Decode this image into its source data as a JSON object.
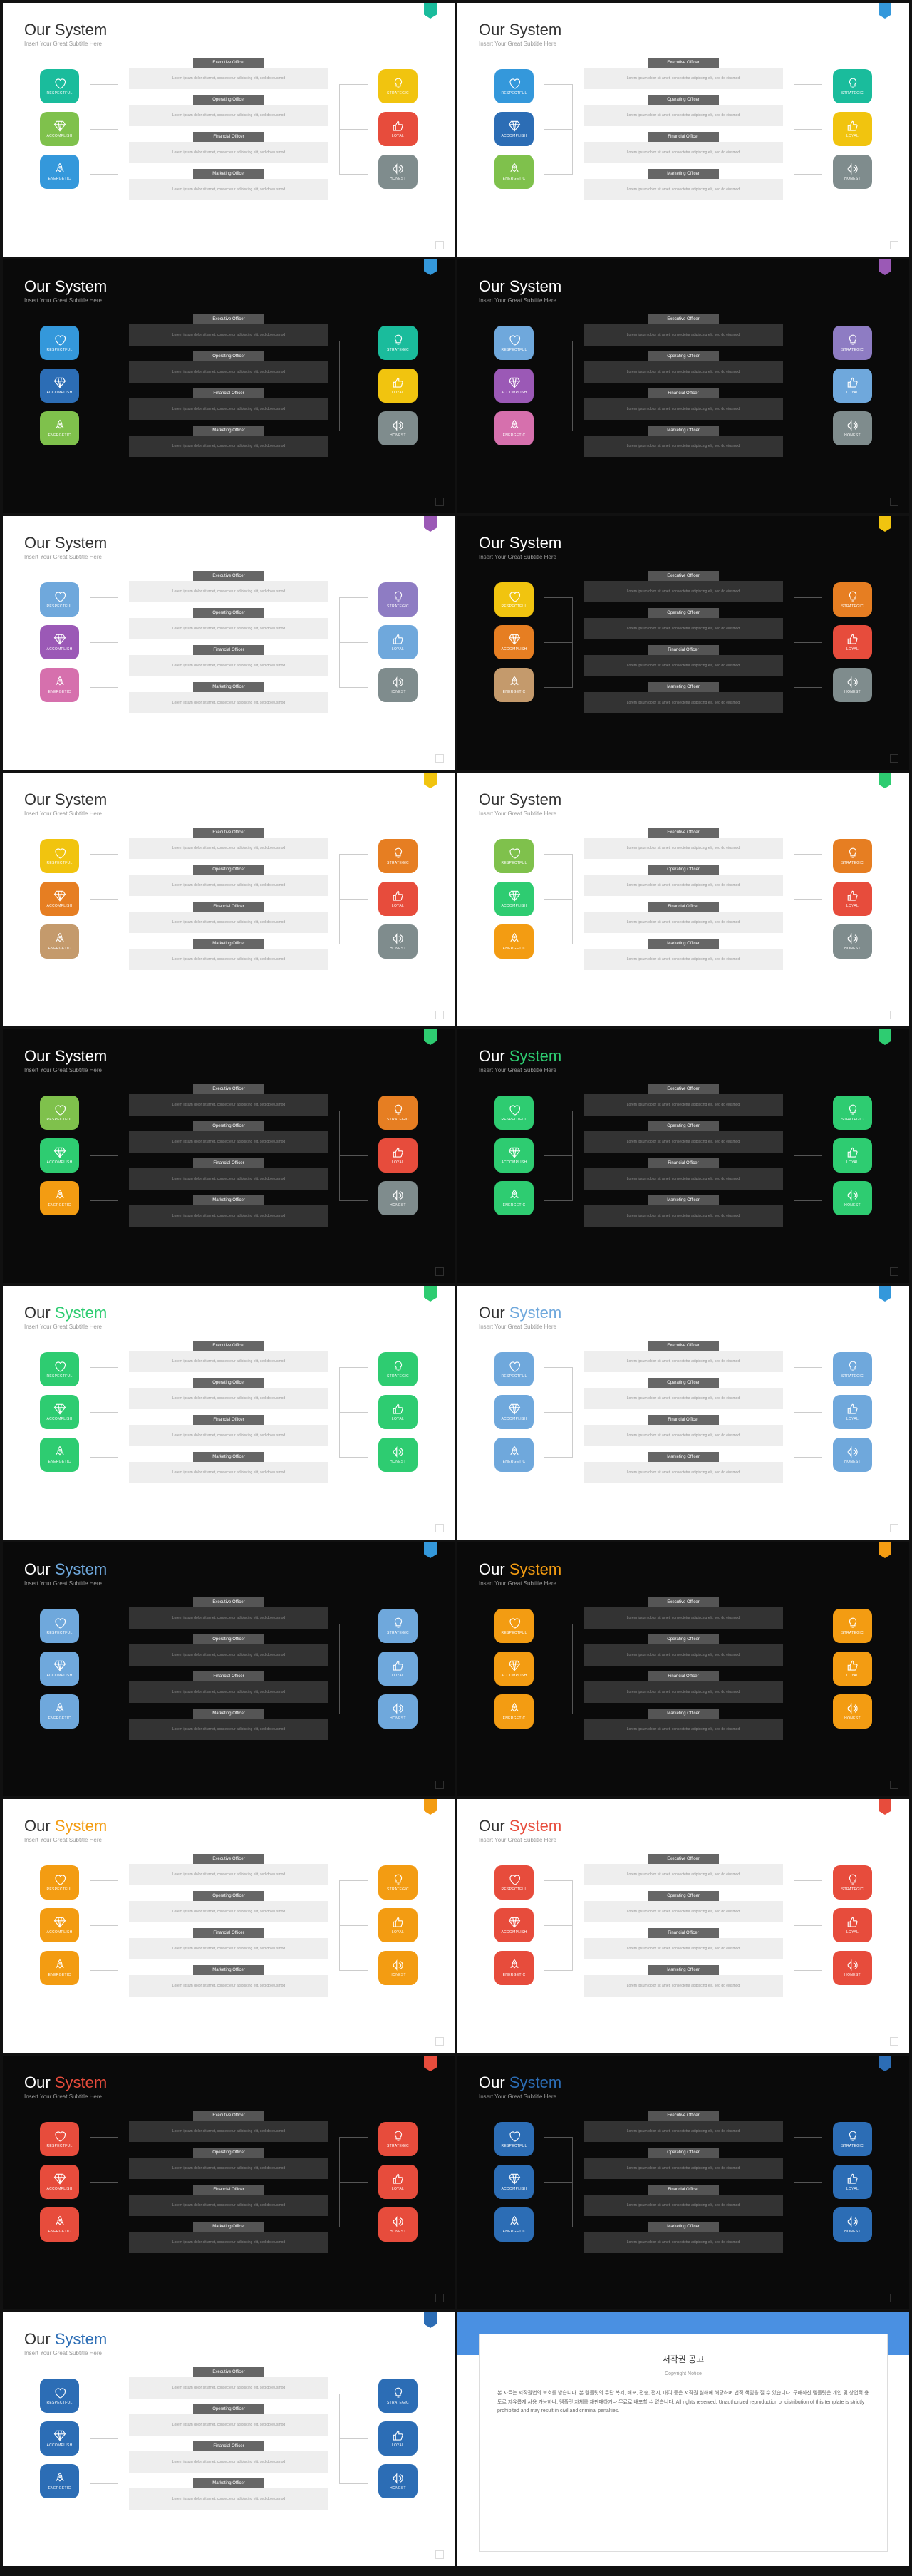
{
  "title_main": "Our",
  "title_accent": "System",
  "subtitle": "Insert Your Great Subtitle Here",
  "left_labels": [
    "RESPECTFUL",
    "ACCOMPLISH",
    "ENERGETIC"
  ],
  "right_labels": [
    "STRATEGIC",
    "LOYAL",
    "HONEST"
  ],
  "center_headers": [
    "Executive Officer",
    "Operating Officer",
    "Financial Officer",
    "Marketing Officer"
  ],
  "center_body": "Lorem ipsum dolor sit amet, consectetur adipiscing elit, sed do eiusmod",
  "badge_colors": [
    "#1abc9c",
    "#3498db",
    "#3498db",
    "#9b59b6",
    "#9b59b6",
    "#f1c40f",
    "#f1c40f",
    "#2ecc71",
    "#2ecc71",
    "#2ecc71",
    "#2ecc71",
    "#3498db",
    "#3498db",
    "#f39c12",
    "#f39c12",
    "#e74c3c",
    "#e74c3c",
    "#2c6db5",
    "#2c6db5",
    "#3498db"
  ],
  "slides": [
    {
      "bg": "light",
      "accent": "#333",
      "left": [
        "#1abc9c",
        "#7fc14c",
        "#3498db"
      ],
      "right": [
        "#f1c40f",
        "#e74c3c",
        "#7f8c8d"
      ]
    },
    {
      "bg": "light",
      "accent": "#333",
      "left": [
        "#3498db",
        "#2c6db5",
        "#7fc14c"
      ],
      "right": [
        "#1abc9c",
        "#f1c40f",
        "#7f8c8d"
      ]
    },
    {
      "bg": "dark",
      "accent": "#fff",
      "left": [
        "#3498db",
        "#2c6db5",
        "#7fc14c"
      ],
      "right": [
        "#1abc9c",
        "#f1c40f",
        "#7f8c8d"
      ]
    },
    {
      "bg": "dark",
      "accent": "#fff",
      "left": [
        "#6fa8dc",
        "#9b59b6",
        "#d670ad"
      ],
      "right": [
        "#8e7cc3",
        "#6fa8dc",
        "#7f8c8d"
      ]
    },
    {
      "bg": "light",
      "accent": "#333",
      "left": [
        "#6fa8dc",
        "#9b59b6",
        "#d670ad"
      ],
      "right": [
        "#8e7cc3",
        "#6fa8dc",
        "#7f8c8d"
      ]
    },
    {
      "bg": "dark",
      "accent": "#fff",
      "left": [
        "#f1c40f",
        "#e67e22",
        "#c49a6c"
      ],
      "right": [
        "#e67e22",
        "#e74c3c",
        "#7f8c8d"
      ]
    },
    {
      "bg": "light",
      "accent": "#333",
      "left": [
        "#f1c40f",
        "#e67e22",
        "#c49a6c"
      ],
      "right": [
        "#e67e22",
        "#e74c3c",
        "#7f8c8d"
      ]
    },
    {
      "bg": "light",
      "accent": "#333",
      "left": [
        "#7fc14c",
        "#2ecc71",
        "#f39c12"
      ],
      "right": [
        "#e67e22",
        "#e74c3c",
        "#7f8c8d"
      ]
    },
    {
      "bg": "dark",
      "accent": "#fff",
      "left": [
        "#7fc14c",
        "#2ecc71",
        "#f39c12"
      ],
      "right": [
        "#e67e22",
        "#e74c3c",
        "#7f8c8d"
      ]
    },
    {
      "bg": "dark",
      "accent": "#2ecc71",
      "left": [
        "#2ecc71",
        "#2ecc71",
        "#2ecc71"
      ],
      "right": [
        "#2ecc71",
        "#2ecc71",
        "#2ecc71"
      ]
    },
    {
      "bg": "light",
      "accent": "#2ecc71",
      "left": [
        "#2ecc71",
        "#2ecc71",
        "#2ecc71"
      ],
      "right": [
        "#2ecc71",
        "#2ecc71",
        "#2ecc71"
      ]
    },
    {
      "bg": "light",
      "accent": "#6fa8dc",
      "left": [
        "#6fa8dc",
        "#6fa8dc",
        "#6fa8dc"
      ],
      "right": [
        "#6fa8dc",
        "#6fa8dc",
        "#6fa8dc"
      ]
    },
    {
      "bg": "dark",
      "accent": "#6fa8dc",
      "left": [
        "#6fa8dc",
        "#6fa8dc",
        "#6fa8dc"
      ],
      "right": [
        "#6fa8dc",
        "#6fa8dc",
        "#6fa8dc"
      ]
    },
    {
      "bg": "dark",
      "accent": "#f39c12",
      "left": [
        "#f39c12",
        "#f39c12",
        "#f39c12"
      ],
      "right": [
        "#f39c12",
        "#f39c12",
        "#f39c12"
      ]
    },
    {
      "bg": "light",
      "accent": "#f39c12",
      "left": [
        "#f39c12",
        "#f39c12",
        "#f39c12"
      ],
      "right": [
        "#f39c12",
        "#f39c12",
        "#f39c12"
      ]
    },
    {
      "bg": "light",
      "accent": "#e74c3c",
      "left": [
        "#e74c3c",
        "#e74c3c",
        "#e74c3c"
      ],
      "right": [
        "#e74c3c",
        "#e74c3c",
        "#e74c3c"
      ]
    },
    {
      "bg": "dark",
      "accent": "#e74c3c",
      "left": [
        "#e74c3c",
        "#e74c3c",
        "#e74c3c"
      ],
      "right": [
        "#e74c3c",
        "#e74c3c",
        "#e74c3c"
      ]
    },
    {
      "bg": "dark",
      "accent": "#2c6db5",
      "left": [
        "#2c6db5",
        "#2c6db5",
        "#2c6db5"
      ],
      "right": [
        "#2c6db5",
        "#2c6db5",
        "#2c6db5"
      ]
    },
    {
      "bg": "light",
      "accent": "#2c6db5",
      "left": [
        "#2c6db5",
        "#2c6db5",
        "#2c6db5"
      ],
      "right": [
        "#2c6db5",
        "#2c6db5",
        "#2c6db5"
      ]
    }
  ],
  "copyright": {
    "title": "저작권 공고",
    "sub": "Copyright Notice",
    "body": "본 자료는 저작권법의 보호를 받습니다. 본 템플릿의 무단 복제, 배포, 전송, 전시, 대여 등은 저작권 침해에 해당하며 법적 책임을 질 수 있습니다. 구매하신 템플릿은 개인 및 상업적 용도로 자유롭게 사용 가능하나, 템플릿 자체를 재판매하거나 무료로 배포할 수 없습니다. All rights reserved. Unauthorized reproduction or distribution of this template is strictly prohibited and may result in civil and criminal penalties."
  }
}
